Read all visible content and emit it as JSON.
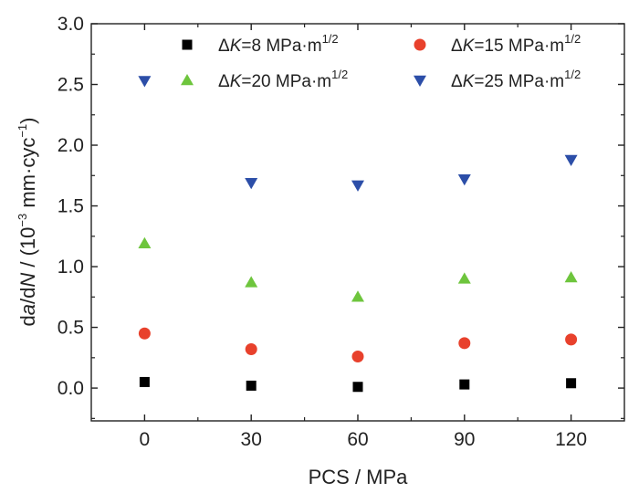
{
  "chart_data": {
    "type": "scatter",
    "xlabel": "PCS / MPa",
    "ylabel": {
      "d1": "d",
      "a": "a",
      "slash_d": "/d",
      "N": "N",
      "open": " / (10",
      "exp1": "−3",
      "unit": " mm·cyc",
      "exp2": "−1",
      "close": ")"
    },
    "x_ticks": [
      0,
      30,
      60,
      90,
      120
    ],
    "x_tick_labels": [
      "0",
      "30",
      "60",
      "90",
      "120"
    ],
    "y_ticks": [
      0.0,
      0.5,
      1.0,
      1.5,
      2.0,
      2.5,
      3.0
    ],
    "y_tick_labels": [
      "0.0",
      "0.5",
      "1.0",
      "1.5",
      "2.0",
      "2.5",
      "3.0"
    ],
    "xlim": [
      -15,
      135
    ],
    "ylim": [
      -0.27,
      3.0
    ],
    "grid": false,
    "legend_placement": "top",
    "series": [
      {
        "name": "ΔK=8 MPa·m1/2",
        "label": {
          "delta": "Δ",
          "K": "K",
          "rest": "=8 MPa·m",
          "exp": "1/2"
        },
        "marker": "square",
        "color": "#000000",
        "x": [
          0,
          30,
          60,
          90,
          120
        ],
        "y": [
          0.05,
          0.02,
          0.01,
          0.03,
          0.04
        ]
      },
      {
        "name": "ΔK=15 MPa·m1/2",
        "label": {
          "delta": "Δ",
          "K": "K",
          "rest": "=15 MPa·m",
          "exp": "1/2"
        },
        "marker": "circle",
        "color": "#e8412c",
        "x": [
          0,
          30,
          60,
          90,
          120
        ],
        "y": [
          0.45,
          0.32,
          0.26,
          0.37,
          0.4
        ]
      },
      {
        "name": "ΔK=20 MPa·m1/2",
        "label": {
          "delta": "Δ",
          "K": "K",
          "rest": "=20 MPa·m",
          "exp": "1/2"
        },
        "marker": "triangle-up",
        "color": "#6ec53d",
        "x": [
          0,
          30,
          60,
          90,
          120
        ],
        "y": [
          1.19,
          0.87,
          0.75,
          0.9,
          0.91
        ]
      },
      {
        "name": "ΔK=25 MPa·m1/2",
        "label": {
          "delta": "Δ",
          "K": "K",
          "rest": "=25 MPa·m",
          "exp": "1/2"
        },
        "marker": "triangle-down",
        "color": "#2c4ea8",
        "x": [
          0,
          30,
          60,
          90,
          120
        ],
        "y": [
          2.53,
          1.69,
          1.67,
          1.72,
          1.88
        ]
      }
    ]
  }
}
